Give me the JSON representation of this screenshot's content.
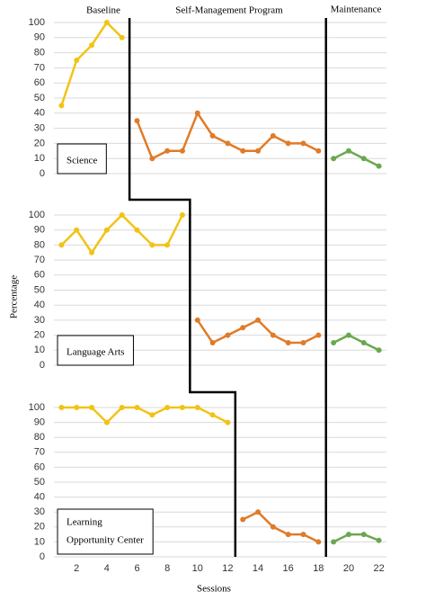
{
  "chart_data": {
    "type": "line",
    "phases": [
      "Baseline",
      "Self-Management Program",
      "Maintenance"
    ],
    "xlabel": "Sessions",
    "ylabel": "Percentage",
    "xlim": [
      0.5,
      22.5
    ],
    "xticks": [
      2,
      4,
      6,
      8,
      10,
      12,
      14,
      16,
      18,
      20,
      22
    ],
    "grid": true,
    "panels": [
      {
        "label": [
          "Science"
        ],
        "ylim": [
          0,
          100
        ],
        "yticks": [
          0,
          10,
          20,
          30,
          40,
          50,
          60,
          70,
          80,
          90,
          100
        ],
        "series": [
          {
            "color": "#f2c316",
            "x": [
              1,
              2,
              3,
              4,
              5
            ],
            "values": [
              45,
              75,
              85,
              100,
              90
            ]
          },
          {
            "color": "#e07b28",
            "x": [
              6,
              7,
              8,
              9,
              10,
              11,
              12,
              13,
              14,
              15,
              16,
              17,
              18
            ],
            "values": [
              35,
              10,
              15,
              15,
              40,
              25,
              20,
              15,
              15,
              25,
              20,
              20,
              15
            ]
          },
          {
            "color": "#6aa84f",
            "x": [
              19,
              20,
              21,
              22
            ],
            "values": [
              10,
              15,
              10,
              5
            ]
          }
        ]
      },
      {
        "label": [
          "Language Arts"
        ],
        "ylim": [
          0,
          100
        ],
        "yticks": [
          0,
          10,
          20,
          30,
          40,
          50,
          60,
          70,
          80,
          90,
          100
        ],
        "series": [
          {
            "color": "#f2c316",
            "x": [
              1,
              2,
              3,
              4,
              5,
              6,
              7,
              8,
              9
            ],
            "values": [
              80,
              90,
              75,
              90,
              100,
              90,
              80,
              80,
              100
            ]
          },
          {
            "color": "#e07b28",
            "x": [
              10,
              11,
              12,
              13,
              14,
              15,
              16,
              17,
              18
            ],
            "values": [
              30,
              15,
              20,
              25,
              30,
              20,
              15,
              15,
              20
            ]
          },
          {
            "color": "#6aa84f",
            "x": [
              19,
              20,
              21,
              22
            ],
            "values": [
              15,
              20,
              15,
              10
            ]
          }
        ]
      },
      {
        "label": [
          "Learning",
          "Opportunity Center"
        ],
        "ylim": [
          0,
          100
        ],
        "yticks": [
          0,
          10,
          20,
          30,
          40,
          50,
          60,
          70,
          80,
          90,
          100
        ],
        "series": [
          {
            "color": "#f2c316",
            "x": [
              1,
              2,
              3,
              4,
              5,
              6,
              7,
              8,
              9,
              10,
              11,
              12
            ],
            "values": [
              100,
              100,
              100,
              90,
              100,
              100,
              95,
              100,
              100,
              100,
              95,
              90
            ]
          },
          {
            "color": "#e07b28",
            "x": [
              13,
              14,
              15,
              16,
              17,
              18
            ],
            "values": [
              25,
              30,
              20,
              15,
              15,
              10
            ]
          },
          {
            "color": "#6aa84f",
            "x": [
              19,
              20,
              21,
              22
            ],
            "values": [
              10,
              15,
              15,
              11
            ]
          }
        ]
      }
    ]
  }
}
